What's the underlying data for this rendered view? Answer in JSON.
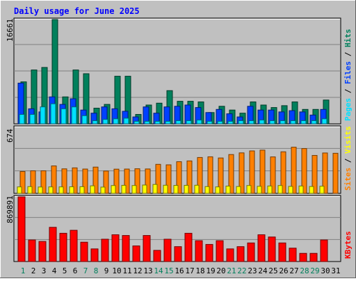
{
  "title": "Daily usage for June 2025",
  "colors": {
    "background": "#C0C0C0",
    "title": "#0000FF",
    "hits": "#00805C",
    "files": "#0040FF",
    "pages": "#00E0FF",
    "visits": "#FFFF00",
    "sites": "#FF8000",
    "kbytes": "#FF0000",
    "weekend_day": "#00805C",
    "weekday": "#000000"
  },
  "days": [
    "1",
    "2",
    "3",
    "4",
    "5",
    "6",
    "7",
    "8",
    "9",
    "10",
    "11",
    "12",
    "13",
    "14",
    "15",
    "16",
    "17",
    "18",
    "19",
    "20",
    "21",
    "22",
    "23",
    "24",
    "25",
    "26",
    "27",
    "28",
    "29",
    "30",
    "31"
  ],
  "weekend_days": [
    "1",
    "7",
    "8",
    "14",
    "15",
    "21",
    "22",
    "28",
    "29"
  ],
  "chart_data": [
    {
      "type": "bar",
      "panel": "hits-files-pages",
      "legend": [
        "Pages",
        "Files",
        "Hits"
      ],
      "ymax_label": "16661",
      "ylim": [
        0,
        16661
      ],
      "grid": true,
      "series": [
        {
          "name": "Hits",
          "values": [
            6700,
            8600,
            9000,
            16661,
            4300,
            8600,
            8000,
            2500,
            3100,
            7600,
            7600,
            1500,
            3000,
            3300,
            5300,
            3600,
            3600,
            3500,
            1800,
            2800,
            2200,
            1700,
            3500,
            3000,
            2600,
            2900,
            3500,
            2300,
            2300,
            3800,
            null
          ]
        },
        {
          "name": "Files",
          "values": [
            6500,
            2400,
            1900,
            4300,
            3100,
            4000,
            2200,
            1700,
            2700,
            2400,
            2000,
            1100,
            2700,
            1700,
            2700,
            2800,
            3000,
            2600,
            1800,
            2300,
            1600,
            1100,
            2800,
            2200,
            2200,
            1900,
            2100,
            1900,
            1400,
            2300,
            null
          ]
        },
        {
          "name": "Pages",
          "values": [
            1500,
            1500,
            2700,
            3200,
            2400,
            2700,
            1300,
            500,
            700,
            800,
            900,
            400,
            400,
            400,
            400,
            500,
            500,
            600,
            400,
            400,
            400,
            500,
            500,
            600,
            500,
            500,
            500,
            500,
            500,
            800,
            null
          ]
        }
      ]
    },
    {
      "type": "bar",
      "panel": "visits-sites",
      "legend": [
        "Sites",
        "Visits"
      ],
      "ymax_label": "674",
      "ylim": [
        0,
        674
      ],
      "grid": true,
      "series": [
        {
          "name": "Sites",
          "values": [
            223,
            230,
            230,
            280,
            250,
            260,
            248,
            268,
            228,
            247,
            248,
            251,
            249,
            296,
            291,
            323,
            331,
            366,
            373,
            361,
            396,
            413,
            433,
            441,
            372,
            424,
            471,
            457,
            387,
            412,
            409
          ]
        },
        {
          "name": "Visits",
          "values": [
            66,
            69,
            65,
            66,
            66,
            67,
            68,
            77,
            64,
            80,
            82,
            80,
            85,
            91,
            83,
            81,
            82,
            83,
            69,
            66,
            74,
            70,
            80,
            72,
            75,
            80,
            71,
            75,
            70,
            73,
            null
          ]
        }
      ]
    },
    {
      "type": "bar",
      "panel": "kbytes",
      "legend": [
        "KBytes"
      ],
      "ymax_label": "869891",
      "ylim": [
        0,
        869891
      ],
      "grid": true,
      "series": [
        {
          "name": "KBytes",
          "values": [
            869891,
            290000,
            270000,
            460000,
            380000,
            420000,
            260000,
            170000,
            300000,
            360000,
            350000,
            210000,
            350000,
            150000,
            300000,
            200000,
            380000,
            280000,
            230000,
            280000,
            170000,
            200000,
            250000,
            360000,
            330000,
            250000,
            180000,
            110000,
            110000,
            290000,
            null
          ]
        }
      ]
    }
  ]
}
